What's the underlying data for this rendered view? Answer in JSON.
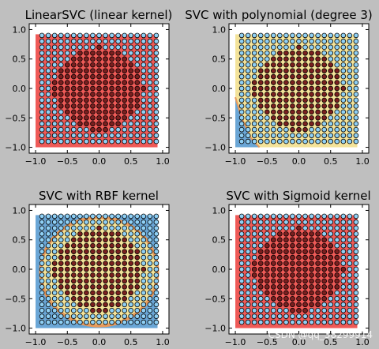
{
  "watermark": "CSDN @qq_38299914",
  "colors": {
    "figure_bg": "#bfbfbf",
    "axes_bg": "#ffffff",
    "red_region": "#ef5a57",
    "blue_region": "#6aa6d6",
    "yellow_region": "#f4e39a",
    "orange_band": "#e79a5c",
    "inner_point": "#7a1f1f",
    "outer_point": "#8fd0f5",
    "point_edge": "#000000"
  },
  "chart_data": [
    {
      "type": "scatter",
      "title": "LinearSVC (linear kernel)",
      "decision": "all-one-class",
      "grid": {
        "x": [
          -0.9,
          0.9
        ],
        "y": [
          -0.9,
          0.9
        ],
        "step": 0.1
      },
      "classes": {
        "inner": "x²+y² < 0.5 (dark red)",
        "outer": "x²+y² ≥ 0.5 (light blue)"
      },
      "xlim": [
        -1.1,
        1.1
      ],
      "ylim": [
        -1.1,
        1.1
      ],
      "xticks": [
        -1.0,
        -0.5,
        0.0,
        0.5,
        1.0
      ],
      "yticks": [
        1.0,
        0.5,
        0.0,
        -0.5,
        -1.0
      ],
      "tick_labels_x": [
        "−1.0",
        "−0.5",
        "0.0",
        "0.5",
        "1.0"
      ],
      "tick_labels_y": [
        "1.0",
        "0.5",
        "0.0",
        "−0.5",
        "−1.0"
      ]
    },
    {
      "type": "scatter",
      "title": "SVC with polynomial (degree 3)",
      "decision": "lower-left-corner",
      "grid": {
        "x": [
          -0.9,
          0.9
        ],
        "y": [
          -0.9,
          0.9
        ],
        "step": 0.1
      },
      "classes": {
        "inner": "x²+y² < 0.5 (dark red)",
        "outer": "x²+y² ≥ 0.5 (light blue)"
      },
      "xlim": [
        -1.1,
        1.1
      ],
      "ylim": [
        -1.1,
        1.1
      ],
      "xticks": [
        -1.0,
        -0.5,
        0.0,
        0.5,
        1.0
      ],
      "yticks": [
        1.0,
        0.5,
        0.0,
        -0.5,
        -1.0
      ],
      "tick_labels_x": [
        "−1.0",
        "−0.5",
        "0.0",
        "0.5",
        "1.0"
      ],
      "tick_labels_y": [
        "1.0",
        "0.5",
        "0.0",
        "−0.5",
        "−1.0"
      ]
    },
    {
      "type": "scatter",
      "title": "SVC with RBF kernel",
      "decision": "circle",
      "circle_radius": 0.92,
      "grid": {
        "x": [
          -0.9,
          0.9
        ],
        "y": [
          -0.9,
          0.9
        ],
        "step": 0.1
      },
      "classes": {
        "inner": "x²+y² < 0.5 (dark red)",
        "outer": "x²+y² ≥ 0.5 (light blue)"
      },
      "xlim": [
        -1.1,
        1.1
      ],
      "ylim": [
        -1.1,
        1.1
      ],
      "xticks": [
        -1.0,
        -0.5,
        0.0,
        0.5,
        1.0
      ],
      "yticks": [
        1.0,
        0.5,
        0.0,
        -0.5,
        -1.0
      ],
      "tick_labels_x": [
        "−1.0",
        "−0.5",
        "0.0",
        "0.5",
        "1.0"
      ],
      "tick_labels_y": [
        "1.0",
        "0.5",
        "0.0",
        "−0.5",
        "−1.0"
      ]
    },
    {
      "type": "scatter",
      "title": "SVC with Sigmoid kernel",
      "decision": "all-one-class",
      "grid": {
        "x": [
          -0.9,
          0.9
        ],
        "y": [
          -0.9,
          0.9
        ],
        "step": 0.1
      },
      "classes": {
        "inner": "x²+y² < 0.5 (dark red)",
        "outer": "x²+y² ≥ 0.5 (light blue)"
      },
      "xlim": [
        -1.1,
        1.1
      ],
      "ylim": [
        -1.1,
        1.1
      ],
      "xticks": [
        -1.0,
        -0.5,
        0.0,
        0.5,
        1.0
      ],
      "yticks": [
        1.0,
        0.5,
        0.0,
        -0.5,
        -1.0
      ],
      "tick_labels_x": [
        "−1.0",
        "−0.5",
        "0.0",
        "0.5",
        "1.0"
      ],
      "tick_labels_y": [
        "1.0",
        "0.5",
        "0.0",
        "−0.5",
        "−1.0"
      ]
    }
  ]
}
